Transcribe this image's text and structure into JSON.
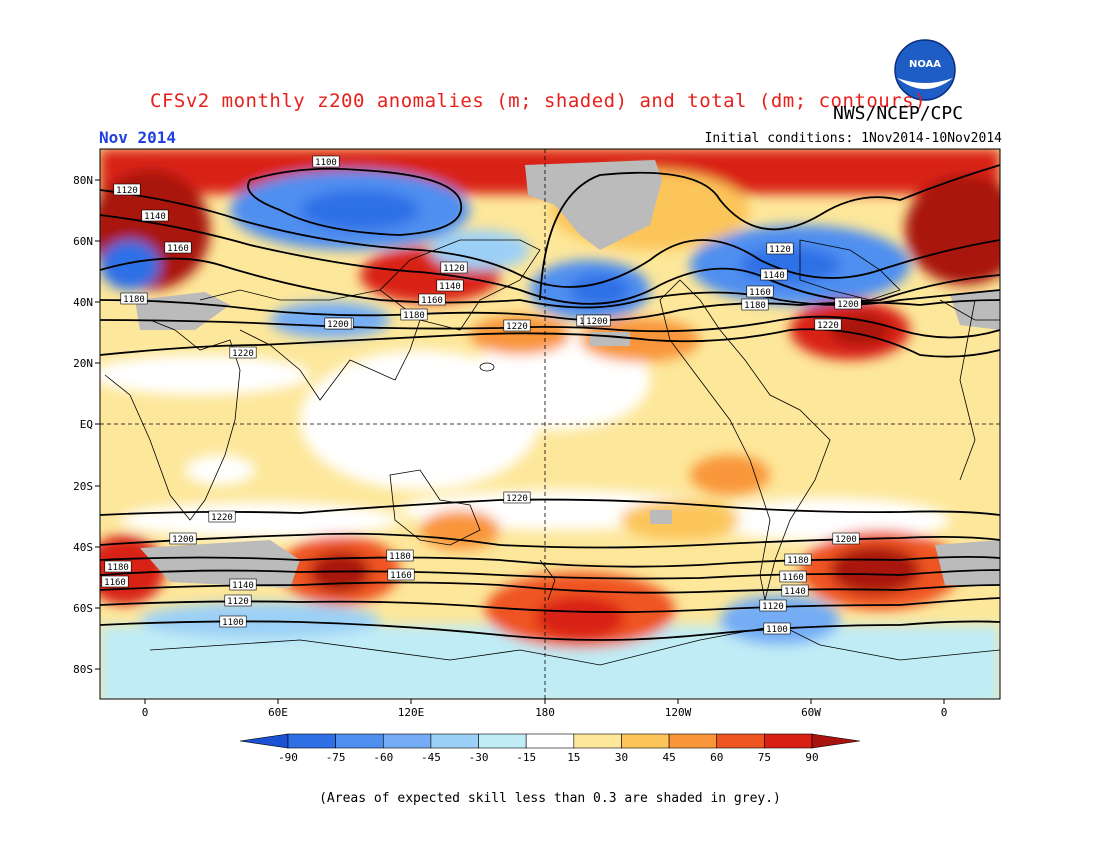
{
  "header": {
    "title": "CFSv2 monthly z200 anomalies (m; shaded) and total (dm; contours)",
    "agency": "NWS/NCEP/CPC",
    "month": "Nov 2014",
    "initial_conditions": "Initial conditions: 1Nov2014-10Nov2014"
  },
  "logo": {
    "text": "NOAA",
    "icon": "noaa-logo-icon"
  },
  "axes": {
    "lat_labels": [
      "80N",
      "60N",
      "40N",
      "20N",
      "EQ",
      "20S",
      "40S",
      "60S",
      "80S"
    ],
    "lon_labels": [
      "0",
      "60E",
      "120E",
      "180",
      "120W",
      "60W",
      "0"
    ]
  },
  "colorbar": {
    "ticks": [
      "-90",
      "-75",
      "-60",
      "-45",
      "-30",
      "-15",
      "15",
      "30",
      "45",
      "60",
      "75",
      "90"
    ],
    "colors": [
      "#1b52d4",
      "#2f6fe6",
      "#4f8ff0",
      "#74adf5",
      "#9cd0f7",
      "#c0ecf6",
      "#ffffff",
      "#fde79a",
      "#fcc55a",
      "#f9963a",
      "#ef5521",
      "#d92015",
      "#a8120f"
    ]
  },
  "contour_labels": [
    "1100",
    "1120",
    "1140",
    "1160",
    "1180",
    "1200",
    "1220",
    "1120",
    "1140",
    "1160",
    "1180",
    "1200",
    "1220",
    "1120",
    "1140",
    "1160",
    "1180",
    "1200",
    "1220",
    "1200",
    "1220",
    "1200",
    "1220",
    "1180",
    "1160",
    "1140",
    "1120",
    "1100",
    "1180",
    "1160",
    "1220",
    "1200",
    "1180",
    "1160",
    "1140",
    "1120",
    "1100",
    "1200"
  ],
  "footnote": "(Areas of expected skill less than 0.3 are shaded in grey.)"
}
